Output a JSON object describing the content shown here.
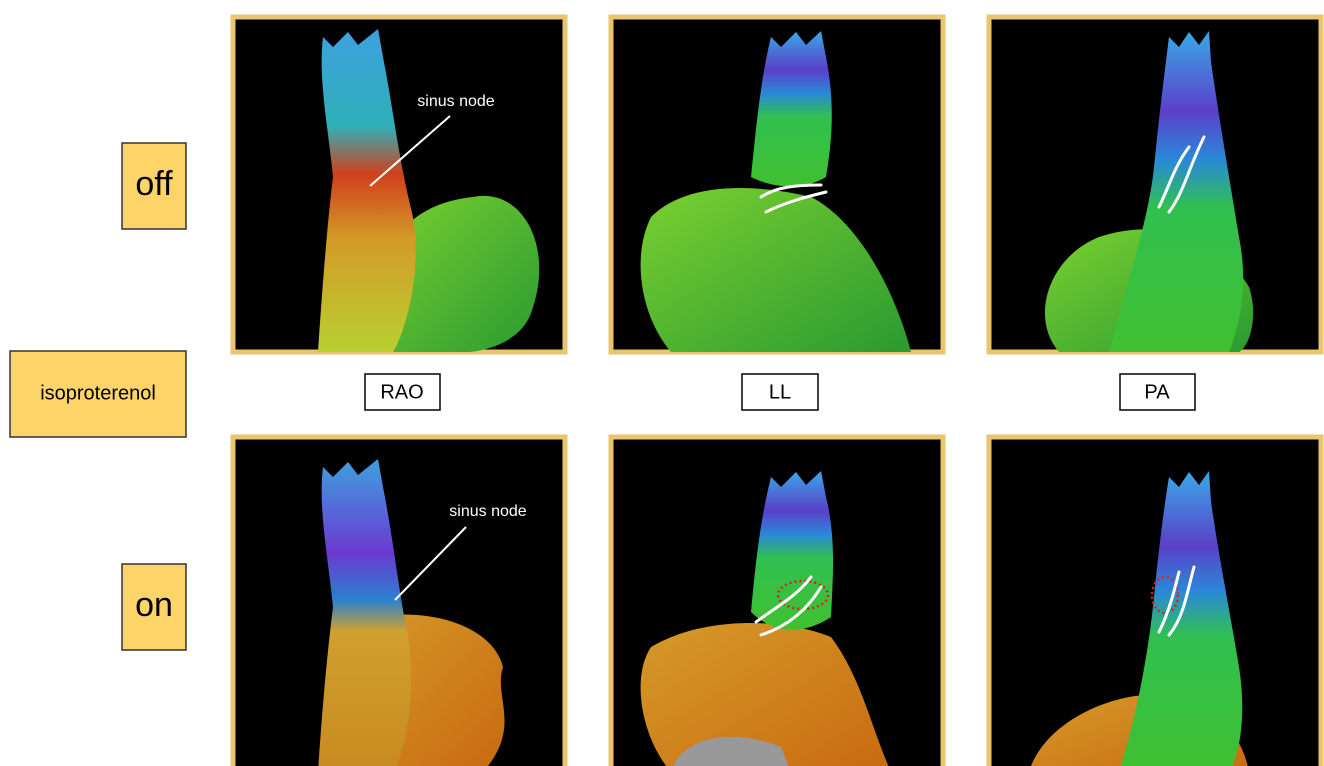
{
  "conditions": [
    "off",
    "isoproterenol",
    "on"
  ],
  "views": [
    "RAO",
    "LL",
    "PA"
  ],
  "annotations": [
    "sinus node",
    "sinus node"
  ]
}
